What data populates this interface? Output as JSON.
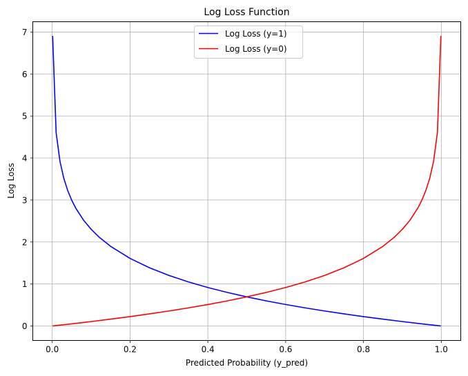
{
  "chart_data": {
    "type": "line",
    "title": "Log Loss Function",
    "xlabel": "Predicted Probability (y_pred)",
    "ylabel": "Log Loss",
    "xlim": [
      -0.05,
      1.05
    ],
    "ylim": [
      -0.345,
      7.245
    ],
    "grid": true,
    "legend_position": "top-center",
    "x_ticks": [
      0.0,
      0.2,
      0.4,
      0.6,
      0.8,
      1.0
    ],
    "x_tick_labels": [
      "0.0",
      "0.2",
      "0.4",
      "0.6",
      "0.8",
      "1.0"
    ],
    "y_ticks": [
      0,
      1,
      2,
      3,
      4,
      5,
      6,
      7
    ],
    "y_tick_labels": [
      "0",
      "1",
      "2",
      "3",
      "4",
      "5",
      "6",
      "7"
    ],
    "series": [
      {
        "name": "Log Loss (y=1)",
        "color": "#0000ff",
        "x": [
          0.001,
          0.01,
          0.02,
          0.03,
          0.04,
          0.05,
          0.06,
          0.08,
          0.1,
          0.12,
          0.15,
          0.2,
          0.25,
          0.3,
          0.35,
          0.4,
          0.45,
          0.5,
          0.55,
          0.6,
          0.65,
          0.7,
          0.75,
          0.8,
          0.85,
          0.9,
          0.95,
          0.999
        ],
        "y": [
          6.908,
          4.605,
          3.912,
          3.507,
          3.219,
          2.996,
          2.813,
          2.526,
          2.303,
          2.12,
          1.897,
          1.609,
          1.386,
          1.204,
          1.05,
          0.916,
          0.799,
          0.693,
          0.598,
          0.511,
          0.431,
          0.357,
          0.288,
          0.223,
          0.163,
          0.105,
          0.051,
          0.001
        ]
      },
      {
        "name": "Log Loss (y=0)",
        "color": "#ff0000",
        "x": [
          0.001,
          0.05,
          0.1,
          0.15,
          0.2,
          0.25,
          0.3,
          0.35,
          0.4,
          0.45,
          0.5,
          0.55,
          0.6,
          0.65,
          0.7,
          0.75,
          0.8,
          0.85,
          0.88,
          0.9,
          0.92,
          0.94,
          0.95,
          0.96,
          0.97,
          0.98,
          0.99,
          0.999
        ],
        "y": [
          0.001,
          0.051,
          0.105,
          0.163,
          0.223,
          0.288,
          0.357,
          0.431,
          0.511,
          0.598,
          0.693,
          0.799,
          0.916,
          1.05,
          1.204,
          1.386,
          1.609,
          1.897,
          2.12,
          2.303,
          2.526,
          2.813,
          2.996,
          3.219,
          3.507,
          3.912,
          4.605,
          6.908
        ]
      }
    ]
  }
}
